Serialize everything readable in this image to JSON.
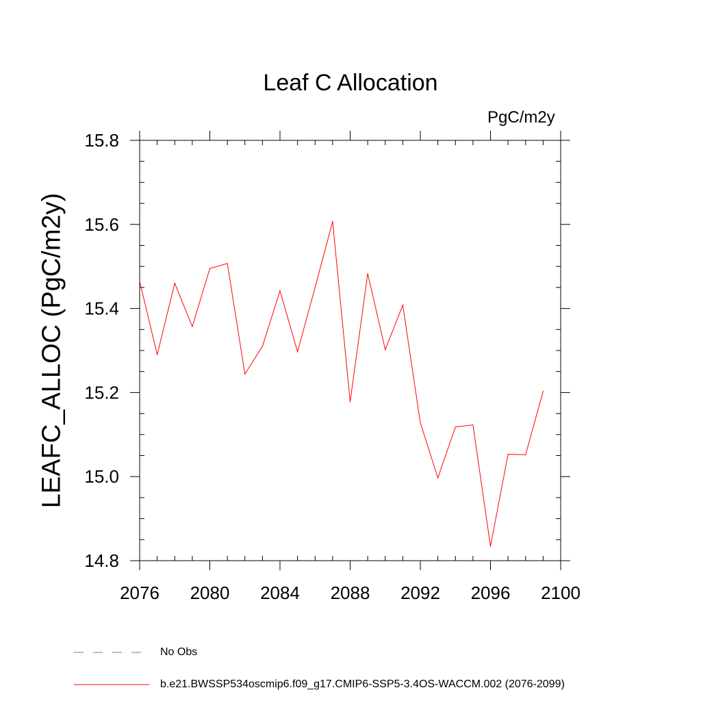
{
  "chart_data": {
    "type": "line",
    "title": "Leaf C Allocation",
    "units": "PgC/m2y",
    "ylabel": "LEAFC_ALLOC  (PgC/m2y)",
    "xlabel": "",
    "xlim": [
      2076,
      2100
    ],
    "ylim": [
      14.8,
      15.8
    ],
    "xticks": [
      2076,
      2080,
      2084,
      2088,
      2092,
      2096,
      2100
    ],
    "yticks": [
      14.8,
      15.0,
      15.2,
      15.4,
      15.6,
      15.8
    ],
    "ytick_labels": [
      "14.8",
      "15.0",
      "15.2",
      "15.4",
      "15.6",
      "15.8"
    ],
    "series": [
      {
        "name": "b.e21.BWSSP534oscmip6.f09_g17.CMIP6-SSP5-3.4OS-WACCM.002 (2076-2099)",
        "color": "#ff0000",
        "x": [
          2076,
          2077,
          2078,
          2079,
          2080,
          2081,
          2082,
          2083,
          2084,
          2085,
          2086,
          2087,
          2088,
          2089,
          2090,
          2091,
          2092,
          2093,
          2094,
          2095,
          2096,
          2097,
          2098,
          2099
        ],
        "values": [
          15.465,
          15.29,
          15.46,
          15.357,
          15.495,
          15.507,
          15.244,
          15.31,
          15.442,
          15.297,
          15.45,
          15.607,
          15.178,
          15.483,
          15.302,
          15.408,
          15.128,
          14.997,
          15.118,
          15.123,
          14.834,
          15.053,
          15.052,
          15.203
        ]
      }
    ],
    "legend": [
      {
        "label": "No Obs",
        "style": "dashed",
        "color": "#7b6bc6"
      },
      {
        "label": "b.e21.BWSSP534oscmip6.f09_g17.CMIP6-SSP5-3.4OS-WACCM.002 (2076-2099)",
        "style": "solid",
        "color": "#ff0000"
      }
    ]
  }
}
